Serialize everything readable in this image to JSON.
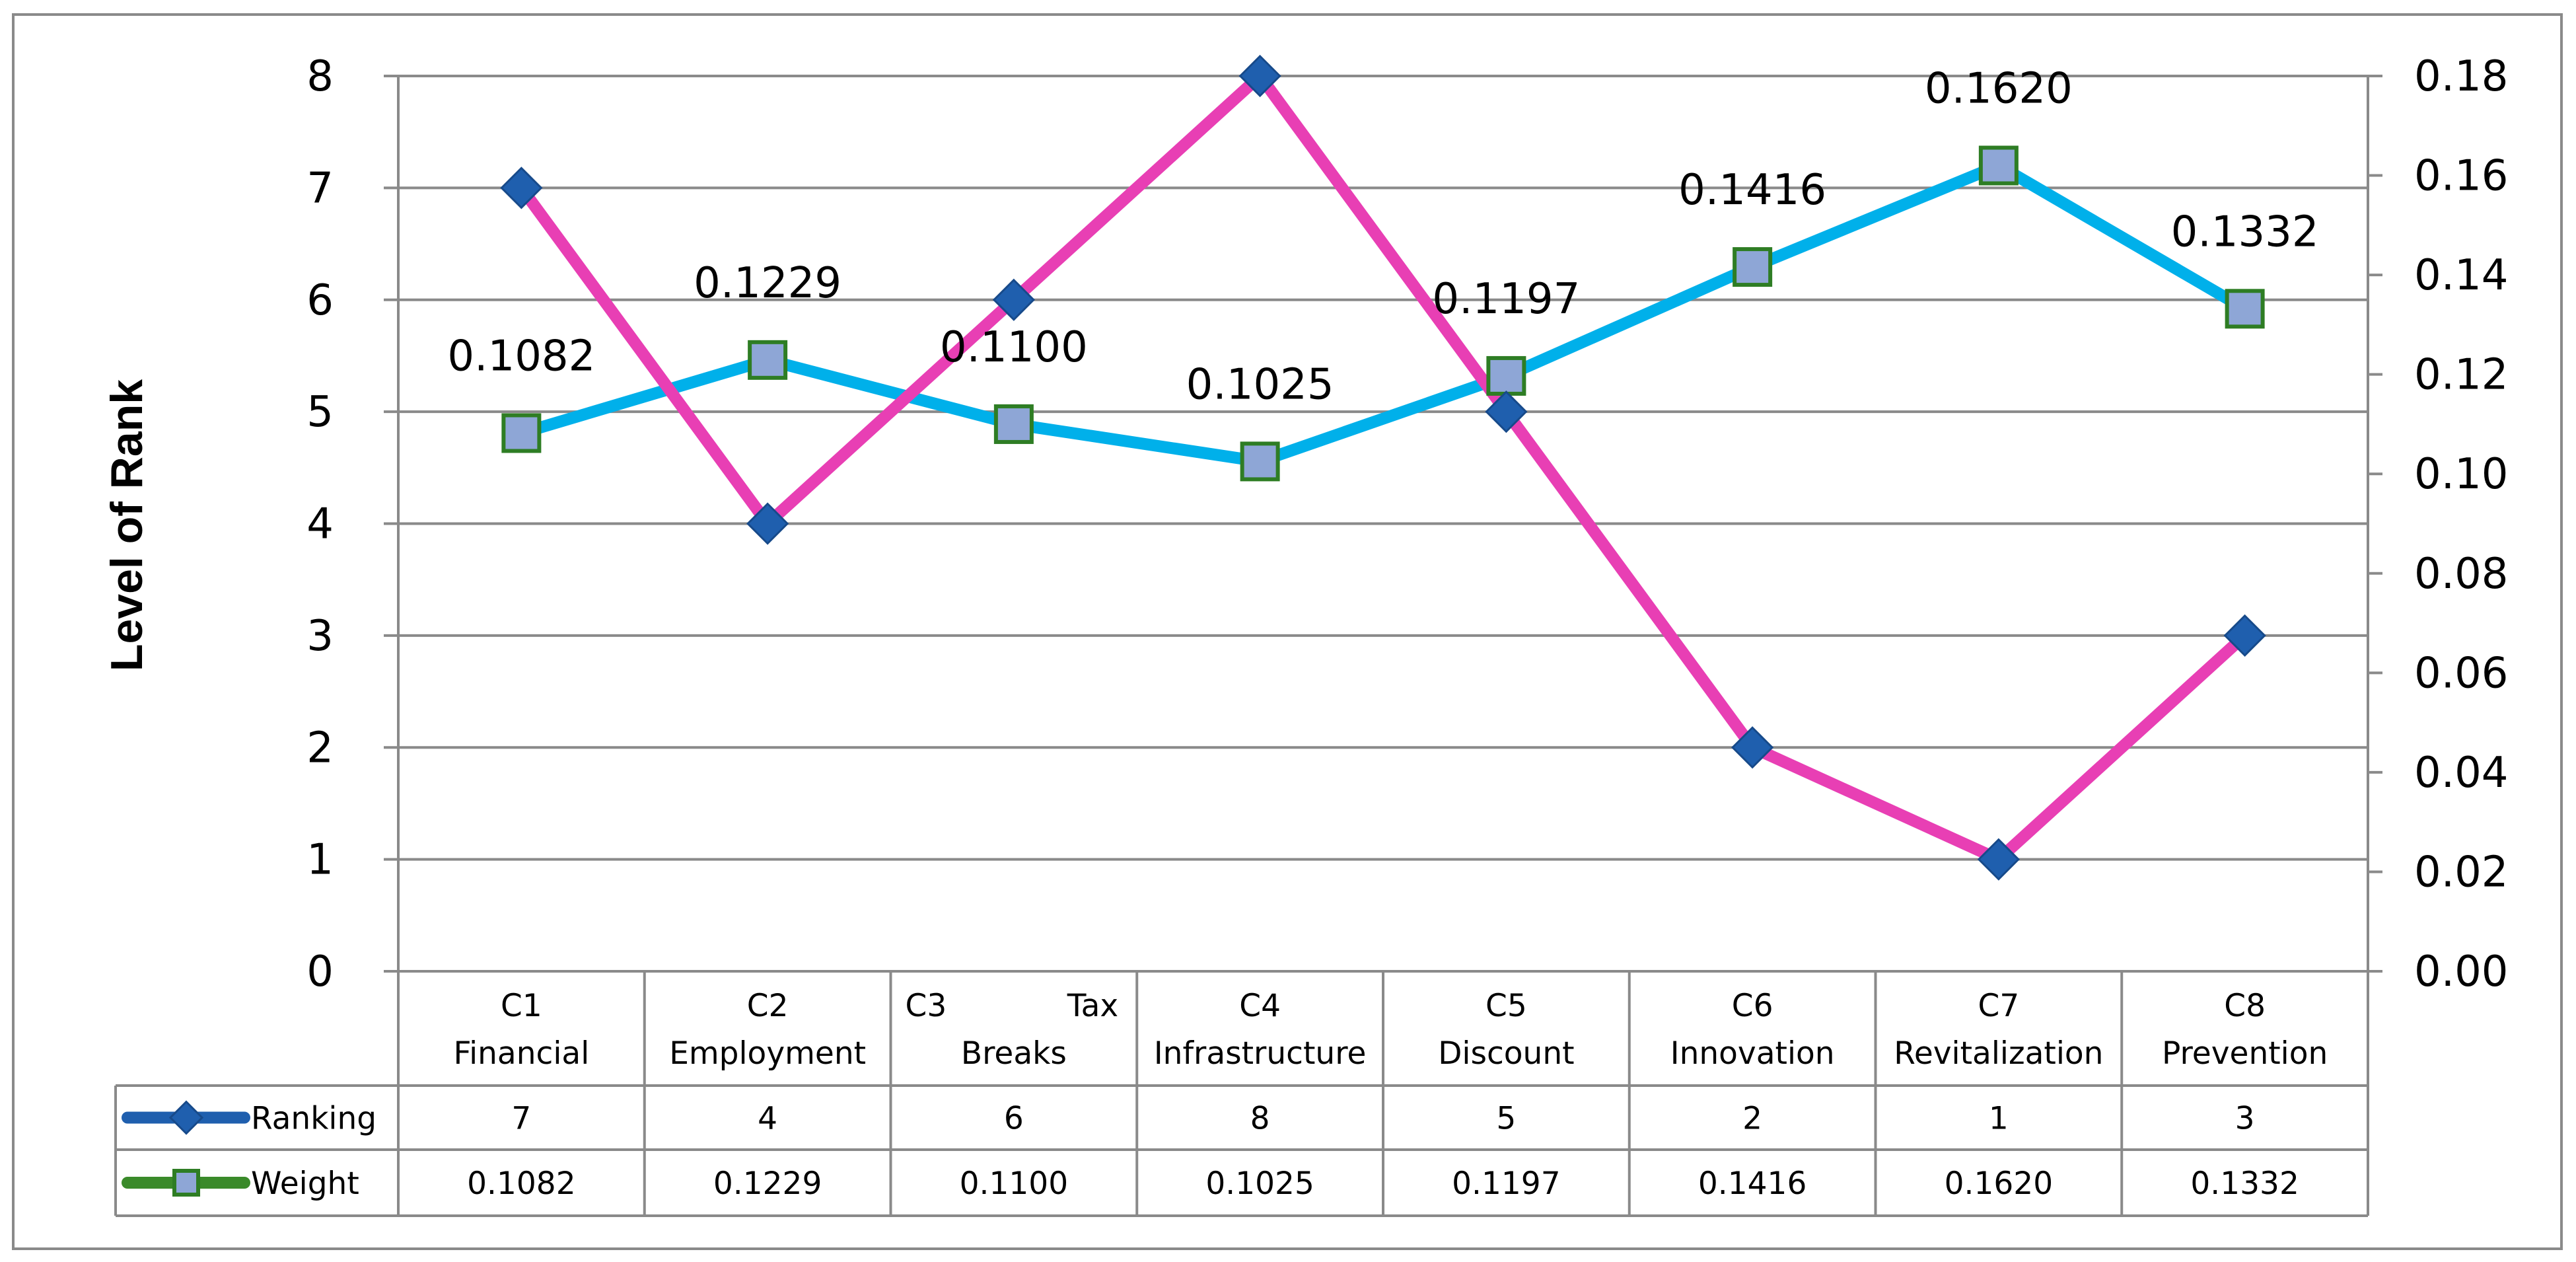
{
  "chart_data": {
    "type": "line",
    "ylabel": "Level of Rank",
    "categories": [
      [
        "C1",
        "Financial"
      ],
      [
        "C2",
        "Employment"
      ],
      [
        "C3",
        "Tax",
        "Breaks"
      ],
      [
        "C4",
        "Infrastructure"
      ],
      [
        "C5",
        "Discount"
      ],
      [
        "C6",
        "Innovation"
      ],
      [
        "C7",
        "Revitalization"
      ],
      [
        "C8",
        "Prevention"
      ]
    ],
    "y_left_ticks": [
      "0",
      "1",
      "2",
      "3",
      "4",
      "5",
      "6",
      "7",
      "8"
    ],
    "y_right_ticks": [
      "0.00",
      "0.02",
      "0.04",
      "0.06",
      "0.08",
      "0.10",
      "0.12",
      "0.14",
      "0.16",
      "0.18"
    ],
    "ylim_left": [
      0,
      8
    ],
    "ylim_right": [
      0,
      0.18
    ],
    "grid": true,
    "legend": "data table below plot",
    "series": [
      {
        "name": "Ranking",
        "axis": "left",
        "values": [
          7,
          4,
          6,
          8,
          5,
          2,
          1,
          3
        ],
        "value_labels": [
          "7",
          "4",
          "6",
          "8",
          "5",
          "2",
          "1",
          "3"
        ],
        "line_color": "#e83fb4",
        "marker": "diamond",
        "marker_color": "#1f5fae",
        "legend_line_color": "#1f5fae"
      },
      {
        "name": "Weight",
        "axis": "right",
        "values": [
          0.1082,
          0.1229,
          0.11,
          0.1025,
          0.1197,
          0.1416,
          0.162,
          0.1332
        ],
        "value_labels": [
          "0.1082",
          "0.1229",
          "0.1100",
          "0.1025",
          "0.1197",
          "0.1416",
          "0.1620",
          "0.1332"
        ],
        "line_color": "#00b0ea",
        "marker": "square",
        "marker_fill": "#8ea6d6",
        "marker_stroke": "#2e7d24",
        "legend_line_color": "#3a8a2a"
      }
    ]
  }
}
